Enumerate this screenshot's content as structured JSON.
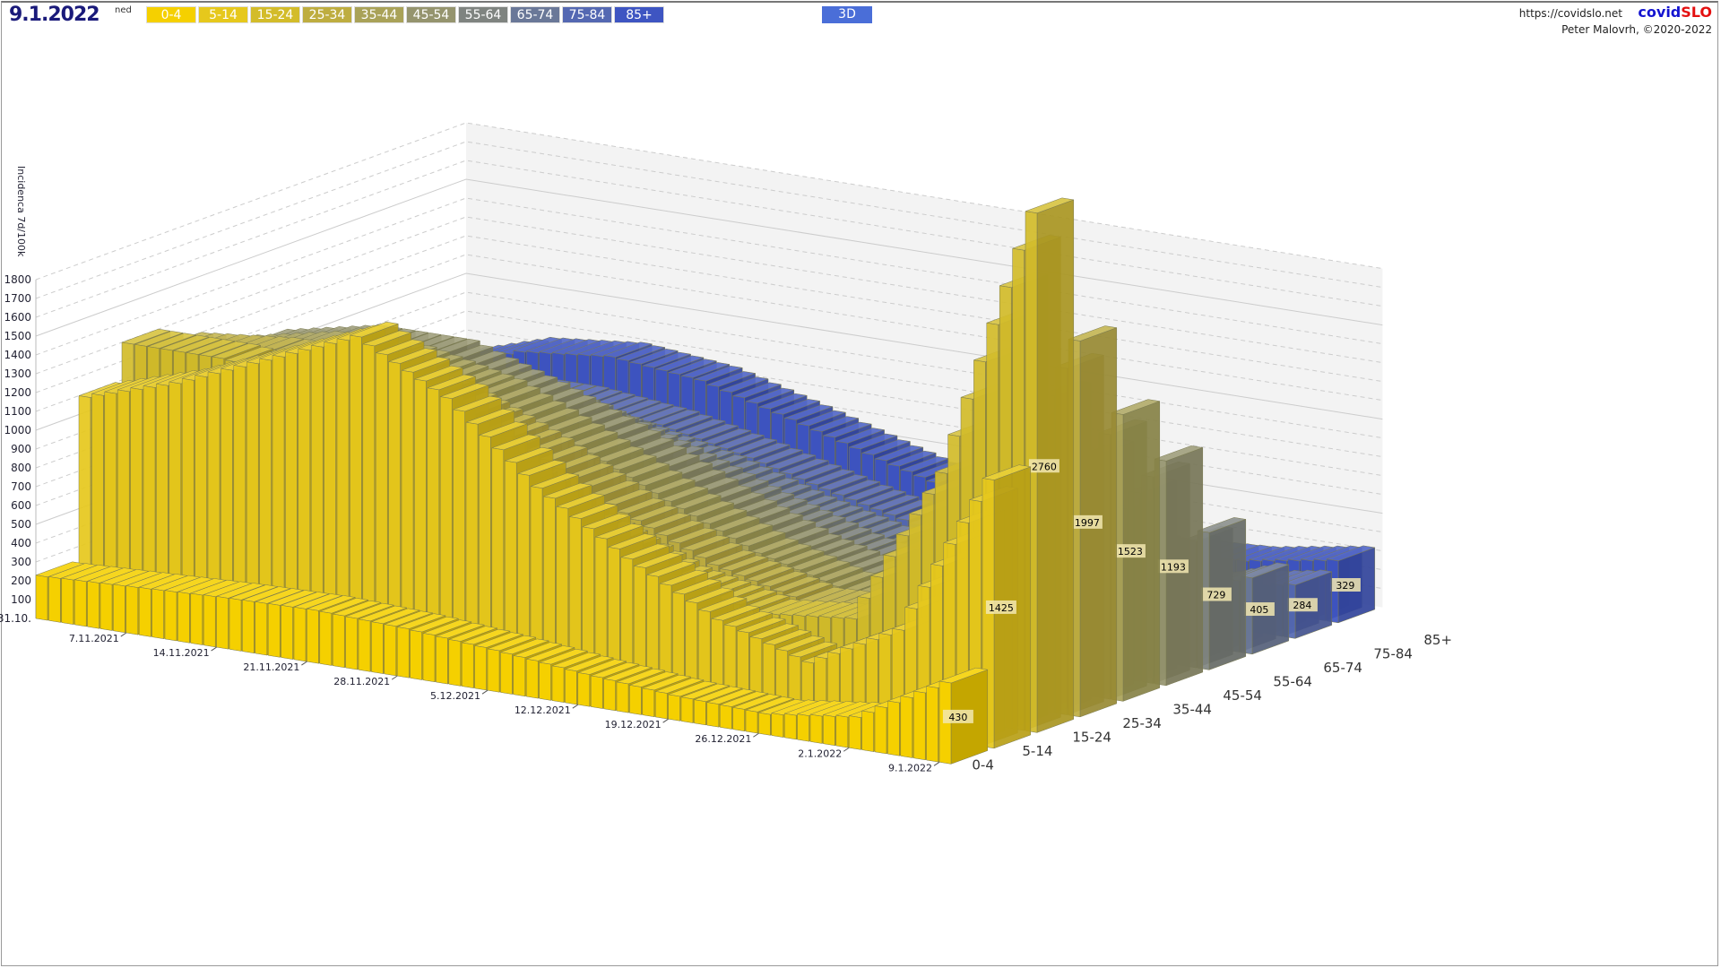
{
  "header": {
    "date": "9.1.2022",
    "day_of_week": "ned",
    "url": "https://covidslo.net",
    "brand_a": "covid",
    "brand_b": "SLO",
    "author": "Peter Malovrh, ©2020-2022",
    "mode_button": "3D"
  },
  "legend": [
    {
      "label": "0-4",
      "color": "#f5d000"
    },
    {
      "label": "5-14",
      "color": "#e6c81c"
    },
    {
      "label": "15-24",
      "color": "#d3bc2a"
    },
    {
      "label": "25-34",
      "color": "#bead40"
    },
    {
      "label": "35-44",
      "color": "#a9a258"
    },
    {
      "label": "45-54",
      "color": "#95946e"
    },
    {
      "label": "55-64",
      "color": "#7f8480"
    },
    {
      "label": "65-74",
      "color": "#6a7898"
    },
    {
      "label": "75-84",
      "color": "#5468b2"
    },
    {
      "label": "85+",
      "color": "#3e55c2"
    }
  ],
  "chart_data": {
    "type": "bar3d",
    "ylabel": "Incidenca 7d/100k",
    "ylim": [
      0,
      1800
    ],
    "yticks": [
      100,
      200,
      300,
      400,
      500,
      600,
      700,
      800,
      900,
      1000,
      1100,
      1200,
      1300,
      1400,
      1500,
      1600,
      1700,
      1800
    ],
    "x_first_label": "31.10.",
    "x_tick_labels": [
      "7.11.2021",
      "14.11.2021",
      "21.11.2021",
      "28.11.2021",
      "5.12.2021",
      "12.12.2021",
      "19.12.2021",
      "26.12.2021",
      "2.1.2022",
      "9.1.2022"
    ],
    "x_weekly": [
      "31.10.2021",
      "7.11.2021",
      "14.11.2021",
      "21.11.2021",
      "28.11.2021",
      "5.12.2021",
      "12.12.2021",
      "19.12.2021",
      "26.12.2021",
      "2.1.2022",
      "9.1.2022"
    ],
    "series": [
      {
        "name": "0-4",
        "values": [
          230,
          250,
          270,
          280,
          260,
          220,
          170,
          130,
          110,
          170,
          430
        ],
        "last": "430"
      },
      {
        "name": "5-14",
        "values": [
          1100,
          1250,
          1450,
          1650,
          1400,
          1000,
          700,
          450,
          300,
          550,
          1425
        ],
        "last": "1425"
      },
      {
        "name": "15-24",
        "values": [
          1300,
          1300,
          1250,
          1150,
          950,
          700,
          500,
          400,
          450,
          1300,
          2760
        ],
        "last": "2760"
      },
      {
        "name": "25-34",
        "values": [
          1200,
          1250,
          1250,
          1150,
          950,
          700,
          500,
          380,
          400,
          900,
          1997
        ],
        "last": "1997"
      },
      {
        "name": "35-44",
        "values": [
          1100,
          1200,
          1200,
          1100,
          900,
          680,
          480,
          350,
          330,
          700,
          1523
        ],
        "last": "1523"
      },
      {
        "name": "45-54",
        "values": [
          1050,
          1150,
          1150,
          1000,
          820,
          600,
          420,
          300,
          260,
          520,
          1193
        ],
        "last": "1193"
      },
      {
        "name": "55-64",
        "values": [
          800,
          900,
          900,
          800,
          650,
          480,
          340,
          240,
          200,
          330,
          729
        ],
        "last": "729"
      },
      {
        "name": "65-74",
        "values": [
          600,
          700,
          700,
          620,
          520,
          380,
          270,
          190,
          160,
          220,
          405
        ],
        "last": "405"
      },
      {
        "name": "75-84",
        "values": [
          550,
          650,
          650,
          600,
          500,
          380,
          270,
          200,
          170,
          200,
          284
        ],
        "last": "284"
      },
      {
        "name": "85+",
        "values": [
          600,
          750,
          800,
          750,
          620,
          480,
          350,
          260,
          220,
          250,
          329
        ],
        "last": "329"
      }
    ]
  }
}
